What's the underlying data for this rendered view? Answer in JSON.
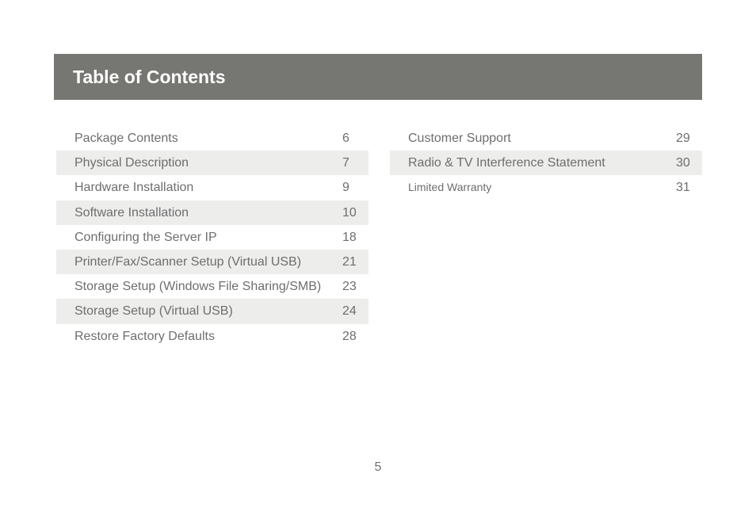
{
  "header": {
    "title": "Table of Contents"
  },
  "toc": {
    "left": [
      {
        "title": "Package Contents",
        "page": "6"
      },
      {
        "title": "Physical Description",
        "page": "7"
      },
      {
        "title": "Hardware Installation",
        "page": "9"
      },
      {
        "title": "Software Installation",
        "page": "10"
      },
      {
        "title": "Configuring the Server IP",
        "page": "18"
      },
      {
        "title": "Printer/Fax/Scanner Setup (Virtual USB)",
        "page": "21"
      },
      {
        "title": "Storage Setup (Windows File Sharing/SMB)",
        "page": "23"
      },
      {
        "title": "Storage Setup (Virtual USB)",
        "page": "24"
      },
      {
        "title": "Restore Factory Defaults",
        "page": "28"
      }
    ],
    "right": [
      {
        "title": "Customer Support",
        "page": "29"
      },
      {
        "title": "Radio & TV Interference Statement",
        "page": "30"
      },
      {
        "title": "Limited Warranty",
        "page": "31"
      }
    ]
  },
  "footer": {
    "page_number": "5"
  },
  "colors": {
    "header_background": "#767672",
    "row_shading": "#ededec",
    "text": "#6e6e6e"
  }
}
